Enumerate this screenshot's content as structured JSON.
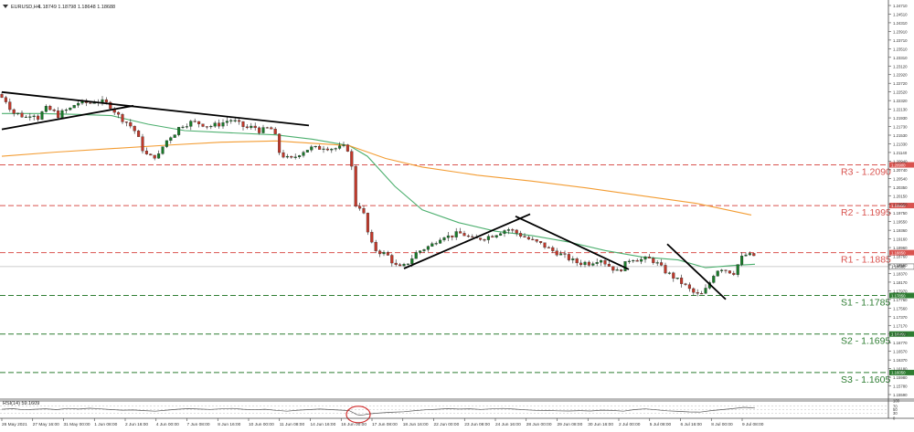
{
  "header": {
    "symbol": "EURUSD,H4",
    "ohlc": "1.18749 1.18798 1.18648 1.18688"
  },
  "rsi_header": "RSI(14) 59.1609",
  "colors": {
    "bull": "#1a7a2a",
    "bear": "#c0392b",
    "ma_fast": "#4caf6e",
    "ma_slow": "#f39c32",
    "trendline": "#000000",
    "resistance": "#d9534f",
    "support": "#2e7d32",
    "rsi_line": "#555555",
    "rsi_highlight": "#d32f2f"
  },
  "chart_data": [
    {
      "type": "candlestick",
      "title": "EURUSD,H4",
      "ylim": [
        1.1543,
        1.2475
      ],
      "y_ticks": [
        "1.24710",
        "1.24510",
        "1.24310",
        "1.23910",
        "1.23710",
        "1.23510",
        "1.23310",
        "1.23120",
        "1.22920",
        "1.22720",
        "1.22520",
        "1.22320",
        "1.22130",
        "1.21930",
        "1.21730",
        "1.21530",
        "1.21330",
        "1.21140",
        "1.20940",
        "1.20740",
        "1.20540",
        "1.20350",
        "1.20150",
        "1.19950",
        "1.19750",
        "1.19550",
        "1.19360",
        "1.19160",
        "1.18960",
        "1.18760",
        "1.18560",
        "1.18370",
        "1.18170",
        "1.17970",
        "1.17760",
        "1.17560",
        "1.17370",
        "1.17170",
        "1.16970",
        "1.16770",
        "1.16570",
        "1.16370",
        "1.16180",
        "1.15980",
        "1.15780",
        "1.15590"
      ],
      "x_ticks": [
        "26 May 2021",
        "27 May 16:00",
        "31 May 00:00",
        "1 Jun 08:00",
        "2 Jun 16:00",
        "4 Jun 00:00",
        "7 Jun 08:00",
        "8 Jun 16:00",
        "10 Jun 00:00",
        "11 Jun 08:00",
        "14 Jun 16:00",
        "16 Jun 00:00",
        "17 Jun 08:00",
        "18 Jun 16:00",
        "22 Jun 00:00",
        "23 Jun 08:00",
        "24 Jun 16:00",
        "28 Jun 00:00",
        "29 Jun 08:00",
        "30 Jun 16:00",
        "2 Jul 00:00",
        "5 Jul 08:00",
        "6 Jul 16:00",
        "8 Jul 00:00",
        "9 Jul 08:00"
      ],
      "current_price": "1.18688",
      "levels": [
        {
          "name": "R3",
          "value": 1.209,
          "label": "R3 - 1.2090",
          "tag": "1.20900",
          "kind": "resistance"
        },
        {
          "name": "R2",
          "value": 1.1995,
          "label": "R2 - 1.1995",
          "tag": "1.19950",
          "kind": "resistance"
        },
        {
          "name": "R1",
          "value": 1.1885,
          "label": "R1 - 1.1885",
          "tag": "1.18850",
          "kind": "resistance"
        },
        {
          "name": "S1",
          "value": 1.1785,
          "label": "S1 - 1.1785",
          "tag": "1.17850",
          "kind": "support"
        },
        {
          "name": "S2",
          "value": 1.1695,
          "label": "S2 - 1.1695",
          "tag": "1.16950",
          "kind": "support"
        },
        {
          "name": "S3",
          "value": 1.1605,
          "label": "S3 - 1.1605",
          "tag": "1.16050",
          "kind": "support"
        }
      ],
      "price_path": [
        [
          0,
          1.2255
        ],
        [
          10,
          1.2238
        ],
        [
          16,
          1.2212
        ],
        [
          24,
          1.2208
        ],
        [
          30,
          1.22
        ],
        [
          38,
          1.2212
        ],
        [
          44,
          1.22
        ],
        [
          52,
          1.2222
        ],
        [
          60,
          1.2216
        ],
        [
          66,
          1.2205
        ],
        [
          72,
          1.2215
        ],
        [
          80,
          1.2222
        ],
        [
          86,
          1.2235
        ],
        [
          94,
          1.2235
        ],
        [
          102,
          1.2235
        ],
        [
          108,
          1.224
        ],
        [
          116,
          1.2236
        ],
        [
          122,
          1.223
        ],
        [
          128,
          1.2215
        ],
        [
          134,
          1.22
        ],
        [
          142,
          1.2188
        ],
        [
          148,
          1.2175
        ],
        [
          152,
          1.2162
        ],
        [
          156,
          1.214
        ],
        [
          160,
          1.2118
        ],
        [
          166,
          1.2108
        ],
        [
          170,
          1.211
        ],
        [
          176,
          1.2112
        ],
        [
          182,
          1.214
        ],
        [
          188,
          1.2155
        ],
        [
          194,
          1.2165
        ],
        [
          200,
          1.2182
        ],
        [
          206,
          1.2185
        ],
        [
          212,
          1.219
        ],
        [
          218,
          1.2188
        ],
        [
          224,
          1.2185
        ],
        [
          230,
          1.218
        ],
        [
          236,
          1.2182
        ],
        [
          242,
          1.2185
        ],
        [
          248,
          1.219
        ],
        [
          254,
          1.2196
        ],
        [
          262,
          1.2188
        ],
        [
          268,
          1.218
        ],
        [
          274,
          1.2175
        ],
        [
          280,
          1.218
        ],
        [
          286,
          1.217
        ],
        [
          292,
          1.2172
        ],
        [
          298,
          1.2178
        ],
        [
          304,
          1.2155
        ],
        [
          308,
          1.212
        ],
        [
          314,
          1.2108
        ],
        [
          320,
          1.2102
        ],
        [
          326,
          1.211
        ],
        [
          332,
          1.212
        ],
        [
          338,
          1.2126
        ],
        [
          344,
          1.213
        ],
        [
          350,
          1.2128
        ],
        [
          356,
          1.2132
        ],
        [
          362,
          1.213
        ],
        [
          368,
          1.2128
        ],
        [
          374,
          1.213
        ],
        [
          380,
          1.2132
        ],
        [
          386,
          1.212
        ],
        [
          388,
          1.206
        ],
        [
          390,
          1.2
        ],
        [
          394,
          1.199
        ],
        [
          398,
          1.1995
        ],
        [
          402,
          1.196
        ],
        [
          406,
          1.192
        ],
        [
          410,
          1.19
        ],
        [
          414,
          1.189
        ],
        [
          420,
          1.1885
        ],
        [
          426,
          1.188
        ],
        [
          430,
          1.1868
        ],
        [
          436,
          1.1853
        ],
        [
          440,
          1.185
        ],
        [
          446,
          1.1855
        ],
        [
          452,
          1.187
        ],
        [
          458,
          1.1885
        ],
        [
          464,
          1.1892
        ],
        [
          470,
          1.1898
        ],
        [
          476,
          1.1905
        ],
        [
          482,
          1.1918
        ],
        [
          488,
          1.1925
        ],
        [
          494,
          1.1922
        ],
        [
          500,
          1.1928
        ],
        [
          508,
          1.193
        ],
        [
          514,
          1.1922
        ],
        [
          520,
          1.1915
        ],
        [
          526,
          1.1918
        ],
        [
          532,
          1.192
        ],
        [
          540,
          1.1925
        ],
        [
          546,
          1.193
        ],
        [
          552,
          1.1936
        ],
        [
          558,
          1.194
        ],
        [
          564,
          1.1935
        ],
        [
          570,
          1.1928
        ],
        [
          576,
          1.1922
        ],
        [
          582,
          1.1915
        ],
        [
          588,
          1.191
        ],
        [
          594,
          1.1905
        ],
        [
          600,
          1.1898
        ],
        [
          606,
          1.189
        ],
        [
          612,
          1.1885
        ],
        [
          618,
          1.1878
        ],
        [
          624,
          1.1872
        ],
        [
          630,
          1.1865
        ],
        [
          636,
          1.186
        ],
        [
          642,
          1.1862
        ],
        [
          648,
          1.186
        ],
        [
          654,
          1.1868
        ],
        [
          660,
          1.187
        ],
        [
          666,
          1.1858
        ],
        [
          672,
          1.185
        ],
        [
          678,
          1.184
        ],
        [
          684,
          1.1852
        ],
        [
          690,
          1.1868
        ],
        [
          696,
          1.1872
        ],
        [
          702,
          1.1868
        ],
        [
          708,
          1.187
        ],
        [
          714,
          1.187
        ],
        [
          720,
          1.1862
        ],
        [
          726,
          1.185
        ],
        [
          732,
          1.1838
        ],
        [
          738,
          1.183
        ],
        [
          744,
          1.182
        ],
        [
          750,
          1.1812
        ],
        [
          756,
          1.18
        ],
        [
          762,
          1.179
        ],
        [
          768,
          1.1785
        ],
        [
          772,
          1.179
        ],
        [
          778,
          1.1812
        ],
        [
          784,
          1.1838
        ],
        [
          790,
          1.185
        ],
        [
          796,
          1.1845
        ],
        [
          802,
          1.184
        ],
        [
          806,
          1.1838
        ],
        [
          812,
          1.187
        ],
        [
          818,
          1.188
        ],
        [
          824,
          1.1878
        ]
      ],
      "series": [
        {
          "name": "ma_fast",
          "values": [
            [
              0,
              1.221
            ],
            [
              40,
              1.221
            ],
            [
              80,
              1.2208
            ],
            [
              120,
              1.2205
            ],
            [
              160,
              1.2185
            ],
            [
              200,
              1.217
            ],
            [
              250,
              1.2165
            ],
            [
              300,
              1.216
            ],
            [
              340,
              1.215
            ],
            [
              380,
              1.2135
            ],
            [
              400,
              1.211
            ],
            [
              430,
              1.204
            ],
            [
              460,
              1.1985
            ],
            [
              500,
              1.1955
            ],
            [
              540,
              1.1935
            ],
            [
              580,
              1.1925
            ],
            [
              620,
              1.191
            ],
            [
              660,
              1.189
            ],
            [
              700,
              1.1875
            ],
            [
              740,
              1.1868
            ],
            [
              770,
              1.185
            ],
            [
              800,
              1.1855
            ],
            [
              824,
              1.1858
            ]
          ]
        },
        {
          "name": "ma_slow",
          "values": [
            [
              0,
              1.211
            ],
            [
              60,
              1.212
            ],
            [
              120,
              1.2128
            ],
            [
              180,
              1.2136
            ],
            [
              240,
              1.2143
            ],
            [
              300,
              1.2146
            ],
            [
              380,
              1.2135
            ],
            [
              420,
              1.2105
            ],
            [
              460,
              1.2085
            ],
            [
              520,
              1.2066
            ],
            [
              580,
              1.2052
            ],
            [
              640,
              1.2036
            ],
            [
              700,
              1.2018
            ],
            [
              760,
              1.2
            ],
            [
              820,
              1.1973
            ]
          ]
        }
      ],
      "trendlines": [
        {
          "name": "downtrend-1",
          "points": [
            [
              0,
              1.226
            ],
            [
              336,
              1.2182
            ]
          ]
        },
        {
          "name": "downtrend-2",
          "points": [
            [
              0,
              1.2173
            ],
            [
              144,
              1.2228
            ]
          ]
        },
        {
          "name": "uptrend-1",
          "points": [
            [
              440,
              1.1848
            ],
            [
              578,
              1.1975
            ]
          ]
        },
        {
          "name": "downtrend-3",
          "points": [
            [
              562,
              1.197
            ],
            [
              686,
              1.1846
            ]
          ]
        },
        {
          "name": "downtrend-4",
          "points": [
            [
              728,
              1.1905
            ],
            [
              792,
              1.1776
            ]
          ]
        }
      ]
    },
    {
      "type": "line",
      "title": "RSI(14) 59.1609",
      "ylim": [
        0,
        100
      ],
      "y_ticks": [
        "100",
        "70",
        "50",
        "30",
        "0"
      ],
      "values": [
        [
          0,
          52
        ],
        [
          12,
          56
        ],
        [
          24,
          49
        ],
        [
          36,
          52
        ],
        [
          48,
          55
        ],
        [
          60,
          50
        ],
        [
          72,
          57
        ],
        [
          84,
          53
        ],
        [
          96,
          58
        ],
        [
          108,
          54
        ],
        [
          120,
          50
        ],
        [
          132,
          47
        ],
        [
          144,
          48
        ],
        [
          156,
          44
        ],
        [
          168,
          41
        ],
        [
          180,
          47
        ],
        [
          192,
          52
        ],
        [
          204,
          56
        ],
        [
          216,
          53
        ],
        [
          228,
          51
        ],
        [
          240,
          54
        ],
        [
          252,
          57
        ],
        [
          264,
          52
        ],
        [
          276,
          49
        ],
        [
          288,
          52
        ],
        [
          300,
          46
        ],
        [
          312,
          41
        ],
        [
          324,
          47
        ],
        [
          336,
          50
        ],
        [
          348,
          53
        ],
        [
          360,
          50
        ],
        [
          372,
          47
        ],
        [
          380,
          44
        ],
        [
          384,
          34
        ],
        [
          388,
          22
        ],
        [
          392,
          18
        ],
        [
          396,
          20
        ],
        [
          402,
          26
        ],
        [
          414,
          31
        ],
        [
          426,
          35
        ],
        [
          440,
          38
        ],
        [
          452,
          44
        ],
        [
          464,
          49
        ],
        [
          476,
          52
        ],
        [
          488,
          56
        ],
        [
          500,
          53
        ],
        [
          512,
          55
        ],
        [
          524,
          51
        ],
        [
          536,
          54
        ],
        [
          548,
          57
        ],
        [
          560,
          53
        ],
        [
          572,
          49
        ],
        [
          584,
          46
        ],
        [
          596,
          45
        ],
        [
          608,
          43
        ],
        [
          620,
          42
        ],
        [
          632,
          44
        ],
        [
          644,
          42
        ],
        [
          656,
          47
        ],
        [
          668,
          45
        ],
        [
          680,
          41
        ],
        [
          692,
          50
        ],
        [
          704,
          54
        ],
        [
          716,
          49
        ],
        [
          728,
          43
        ],
        [
          740,
          40
        ],
        [
          752,
          37
        ],
        [
          764,
          36
        ],
        [
          776,
          44
        ],
        [
          788,
          50
        ],
        [
          800,
          56
        ],
        [
          812,
          63
        ],
        [
          818,
          61
        ],
        [
          824,
          59
        ]
      ]
    }
  ]
}
